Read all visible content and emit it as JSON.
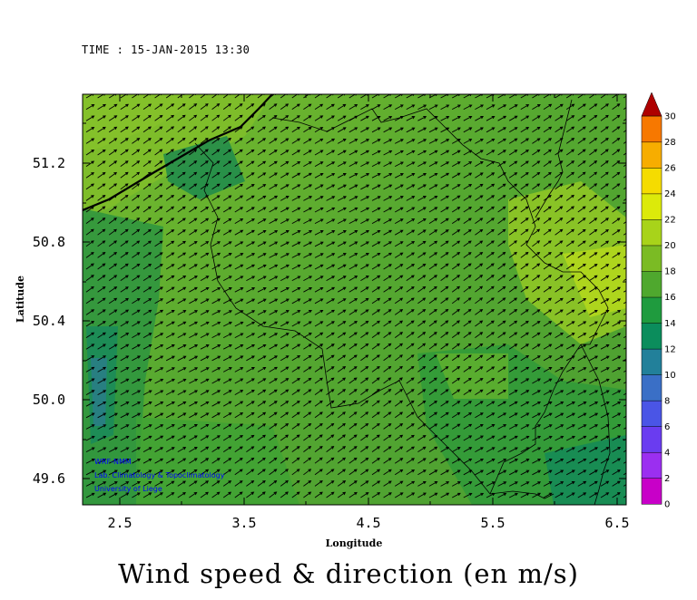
{
  "time_label": "TIME : 15-JAN-2015 13:30",
  "title": "Wind speed & direction (en m/s)",
  "map": {
    "x_axis_label": "Longitude",
    "y_axis_label": "Latitude",
    "x_ticks": [
      "2.5",
      "3.5",
      "4.5",
      "5.5",
      "6.5"
    ],
    "y_ticks": [
      "51.2",
      "50.8",
      "50.4",
      "50.0",
      "49.6"
    ],
    "lon_range": [
      2.15,
      6.6
    ],
    "lat_range": [
      49.47,
      51.53
    ],
    "credits": [
      "WRF-NMM",
      "Lab. Climatology & Topoclimatology",
      "University of Liege"
    ],
    "arrow_direction": "toward north-east",
    "colors": {
      "background_field": "#58aa2e",
      "coastline": "#000000",
      "borders": "#000000"
    }
  },
  "colorbar": {
    "labels": [
      "30",
      "28",
      "26",
      "24",
      "22",
      "20",
      "18",
      "16",
      "14",
      "12",
      "10",
      "8",
      "6",
      "4",
      "2",
      "0"
    ],
    "colors": [
      "#c800c8",
      "#9b2ff0",
      "#6a3cf0",
      "#4a55e6",
      "#3a6fc6",
      "#22809a",
      "#0b8d5c",
      "#1f9b3e",
      "#4fa82e",
      "#7bbb24",
      "#a8d31a",
      "#dcea0a",
      "#f5dc00",
      "#f7ad00",
      "#f77800",
      "#f24a00",
      "#e81c00",
      "#d10000",
      "#ae0000"
    ]
  }
}
